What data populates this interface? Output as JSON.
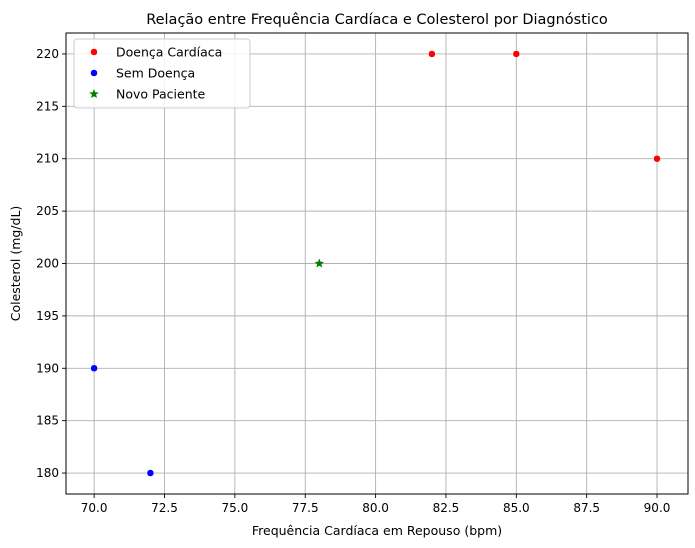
{
  "chart_data": {
    "type": "scatter",
    "title": "Relação entre Frequência Cardíaca e Colesterol por Diagnóstico",
    "xlabel": "Frequência Cardíaca em Repouso (bpm)",
    "ylabel": "Colesterol (mg/dL)",
    "xlim": [
      69,
      91.1
    ],
    "ylim": [
      178,
      222
    ],
    "xticks": [
      70.0,
      72.5,
      75.0,
      77.5,
      80.0,
      82.5,
      85.0,
      87.5,
      90.0
    ],
    "xtick_labels": [
      "70.0",
      "72.5",
      "75.0",
      "77.5",
      "80.0",
      "82.5",
      "85.0",
      "87.5",
      "90.0"
    ],
    "yticks": [
      180,
      185,
      190,
      195,
      200,
      205,
      210,
      215,
      220
    ],
    "ytick_labels": [
      "180",
      "185",
      "190",
      "195",
      "200",
      "205",
      "210",
      "215",
      "220"
    ],
    "grid": true,
    "legend_position": "top-left",
    "series": [
      {
        "name": "Doença Cardíaca",
        "color": "#ff0000",
        "marker": "circle",
        "points": [
          {
            "x": 82,
            "y": 220
          },
          {
            "x": 85,
            "y": 220
          },
          {
            "x": 90,
            "y": 210
          }
        ]
      },
      {
        "name": "Sem Doença",
        "color": "#0000ff",
        "marker": "circle",
        "points": [
          {
            "x": 70,
            "y": 190
          },
          {
            "x": 72,
            "y": 180
          }
        ]
      },
      {
        "name": "Novo Paciente",
        "color": "#008000",
        "marker": "star",
        "points": [
          {
            "x": 78,
            "y": 200
          }
        ]
      }
    ]
  }
}
